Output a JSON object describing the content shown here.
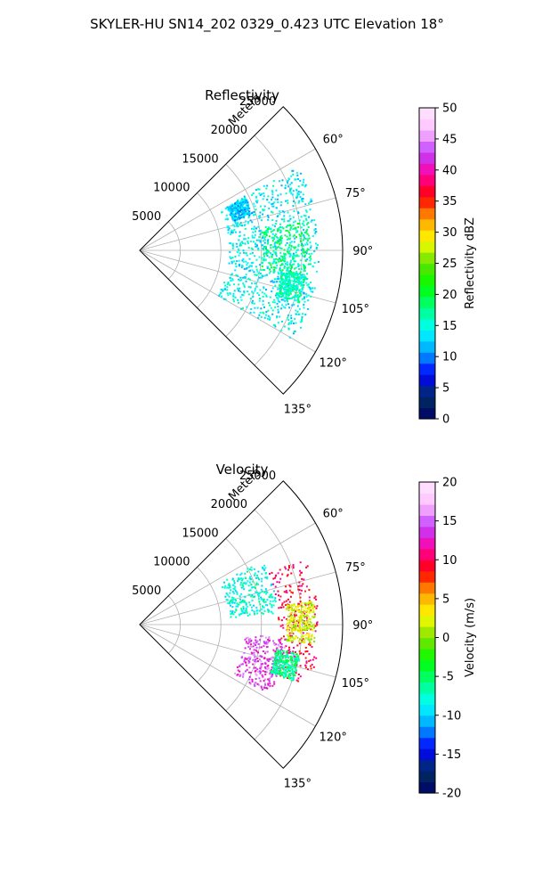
{
  "figure_title": "SKYLER-HU  SN14_202  0329_0.423 UTC Elevation 18°",
  "chart_data": [
    {
      "type": "polar-sector",
      "title": "Reflectivity",
      "radial_label": "Meters",
      "radial_ticks": [
        5000,
        10000,
        15000,
        20000,
        25000
      ],
      "rlim": [
        0,
        25000
      ],
      "angle_ticks": [
        "60°",
        "75°",
        "90°",
        "105°",
        "120°",
        "135°"
      ],
      "angle_tick_values": [
        60,
        75,
        90,
        105,
        120,
        135
      ],
      "theta_range_deg": [
        45,
        135
      ],
      "grid": true,
      "colorbar": {
        "label": "Reflectivity dBZ",
        "ticks": [
          "0",
          "5",
          "10",
          "15",
          "20",
          "25",
          "30",
          "35",
          "40",
          "45",
          "50"
        ],
        "tick_values": [
          0,
          5,
          10,
          15,
          20,
          25,
          30,
          35,
          40,
          45,
          50
        ],
        "range": [
          0,
          50
        ],
        "stops": [
          "#000066",
          "#003060",
          "#0000ff",
          "#00a0ff",
          "#00ffff",
          "#00ff80",
          "#00ff00",
          "#60e000",
          "#ffff00",
          "#ffa000",
          "#ff0000",
          "#ff00a0",
          "#c040ff",
          "#ffc0ff",
          "#ffe6ff"
        ]
      },
      "echo_regions": [
        {
          "range_m": [
            11000,
            22000
          ],
          "az_deg": [
            62,
            120
          ],
          "value": 14,
          "kind": "main"
        },
        {
          "range_m": [
            15000,
            21000
          ],
          "az_deg": [
            80,
            100
          ],
          "value": 18,
          "kind": "core"
        },
        {
          "range_m": [
            12000,
            14500
          ],
          "az_deg": [
            63,
            72
          ],
          "value": 12,
          "kind": "cluster"
        },
        {
          "range_m": [
            17500,
            20500
          ],
          "az_deg": [
            98,
            108
          ],
          "value": 16,
          "kind": "cluster"
        }
      ]
    },
    {
      "type": "polar-sector",
      "title": "Velocity",
      "radial_label": "Meters",
      "radial_ticks": [
        5000,
        10000,
        15000,
        20000,
        25000
      ],
      "rlim": [
        0,
        25000
      ],
      "angle_ticks": [
        "60°",
        "75°",
        "90°",
        "105°",
        "120°",
        "135°"
      ],
      "angle_tick_values": [
        60,
        75,
        90,
        105,
        120,
        135
      ],
      "theta_range_deg": [
        45,
        135
      ],
      "grid": true,
      "colorbar": {
        "label": "Velocity (m/s)",
        "ticks": [
          "-20",
          "-15",
          "-10",
          "-5",
          "0",
          "5",
          "10",
          "15",
          "20"
        ],
        "tick_values": [
          -20,
          -15,
          -10,
          -5,
          0,
          5,
          10,
          15,
          20
        ],
        "range": [
          -20,
          20
        ],
        "stops": [
          "#000066",
          "#003060",
          "#0000ff",
          "#00a0ff",
          "#00ffff",
          "#00ff80",
          "#00ff00",
          "#80e000",
          "#ffff00",
          "#ffa000",
          "#ff0000",
          "#ff00a0",
          "#c040ff",
          "#ffc0ff",
          "#ffe6ff"
        ]
      },
      "echo_regions": [
        {
          "range_m": [
            11000,
            17000
          ],
          "az_deg": [
            62,
            85
          ],
          "value": -8,
          "kind": "inbound"
        },
        {
          "range_m": [
            17000,
            22000
          ],
          "az_deg": [
            68,
            110
          ],
          "value": 10,
          "kind": "outbound"
        },
        {
          "range_m": [
            18000,
            21500
          ],
          "az_deg": [
            82,
            96
          ],
          "value": 2,
          "kind": "shear"
        },
        {
          "range_m": [
            13000,
            18000
          ],
          "az_deg": [
            95,
            118
          ],
          "value": 14,
          "kind": "outbound"
        },
        {
          "range_m": [
            17000,
            20000
          ],
          "az_deg": [
            100,
            110
          ],
          "value": -6,
          "kind": "inbound"
        }
      ]
    }
  ]
}
